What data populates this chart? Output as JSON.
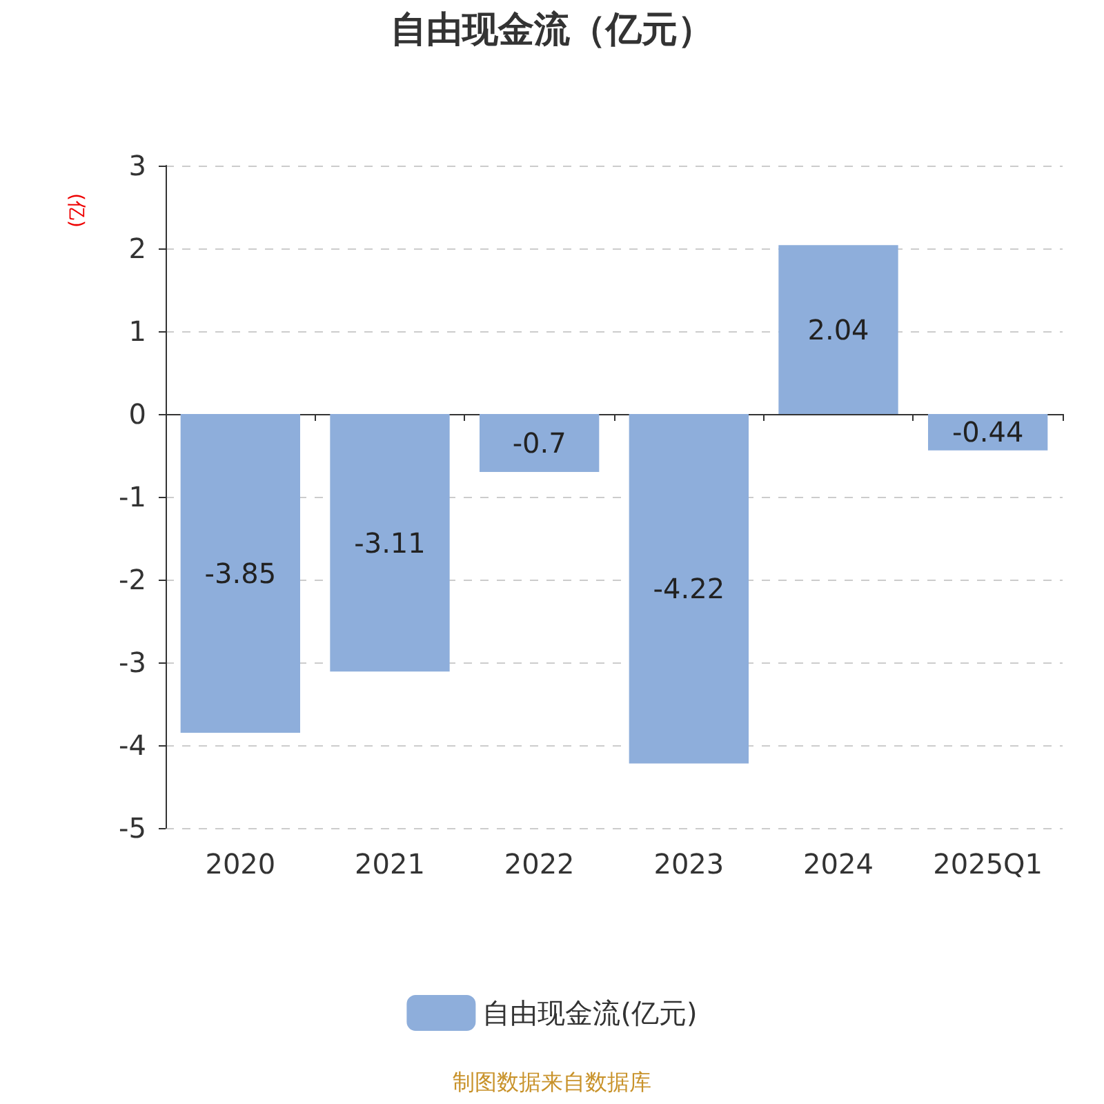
{
  "chart_data": {
    "type": "bar",
    "title": "自由现金流（亿元）",
    "ylabel": "(亿)",
    "categories": [
      "2020",
      "2021",
      "2022",
      "2023",
      "2024",
      "2025Q1"
    ],
    "series": [
      {
        "name": "自由现金流(亿元)",
        "color": "#8eaedb",
        "values": [
          -3.85,
          -3.11,
          -0.7,
          -4.22,
          2.04,
          -0.44
        ]
      }
    ],
    "ylim": [
      -5,
      3
    ],
    "yticks": [
      -5,
      -4,
      -3,
      -2,
      -1,
      0,
      1,
      2,
      3
    ],
    "grid": "y",
    "legend": "bottom",
    "data_labels": true,
    "annotations": [
      "制图数据来自数据库"
    ]
  }
}
